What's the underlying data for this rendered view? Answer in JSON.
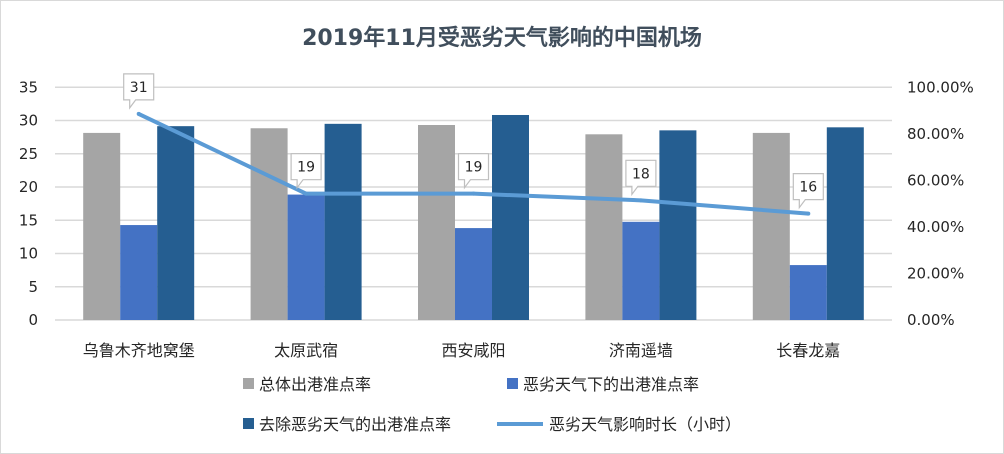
{
  "chart_data": {
    "type": "bar+line",
    "title": "2019年11月受恶劣天气影响的中国机场",
    "categories": [
      "乌鲁木齐地窝堡",
      "太原武宿",
      "西安咸阳",
      "济南遥墙",
      "长春龙嘉"
    ],
    "series": [
      {
        "name": "总体出港准点率",
        "type": "bar",
        "axis": "right",
        "color": "#a5a5a5",
        "values": [
          80.4,
          82.4,
          83.8,
          79.8,
          80.4
        ]
      },
      {
        "name": "恶劣天气下的出港准点率",
        "type": "bar",
        "axis": "right",
        "color": "#4472c4",
        "values": [
          40.8,
          53.9,
          39.5,
          42.2,
          23.6
        ]
      },
      {
        "name": "去除恶劣天气的出港准点率",
        "type": "bar",
        "axis": "right",
        "color": "#255e91",
        "values": [
          83.3,
          84.3,
          88.1,
          81.5,
          82.8
        ]
      },
      {
        "name": "恶劣天气影响时长（小时）",
        "type": "line",
        "axis": "left",
        "color": "#5b9bd5",
        "values": [
          31,
          19,
          19,
          18,
          16
        ],
        "data_labels": [
          "31",
          "19",
          "19",
          "18",
          "16"
        ]
      }
    ],
    "y_left": {
      "range": [
        0,
        35
      ],
      "ticks": [
        "0",
        "5",
        "10",
        "15",
        "20",
        "25",
        "30",
        "35"
      ]
    },
    "y_right": {
      "range": [
        0,
        100
      ],
      "unit": "%",
      "ticks": [
        "0.00%",
        "20.00%",
        "40.00%",
        "60.00%",
        "80.00%",
        "100.00%"
      ]
    },
    "grid": true,
    "legend_placement": "bottom"
  }
}
